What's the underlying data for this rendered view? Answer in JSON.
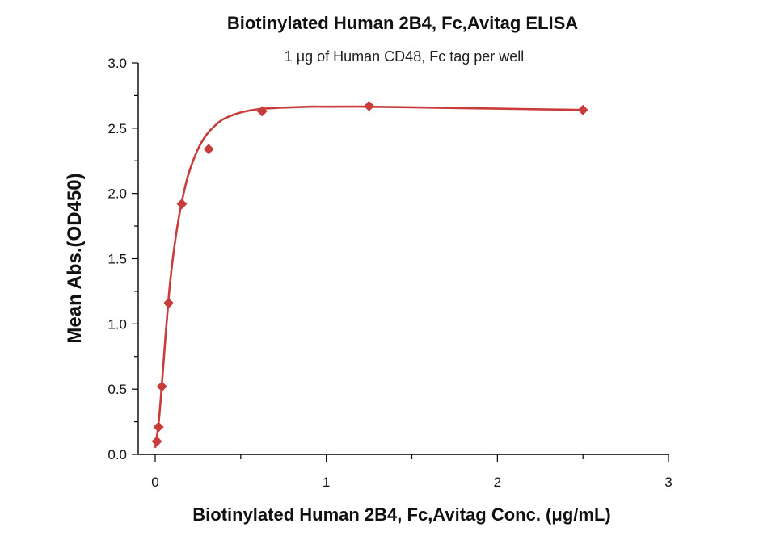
{
  "chart_data": {
    "type": "scatter",
    "title": "Biotinylated Human 2B4, Fc,Avitag ELISA",
    "subtitle": "1 μg of Human CD48, Fc tag per well",
    "xlabel": "Biotinylated Human 2B4, Fc,Avitag Conc. (μg/mL)",
    "ylabel": "Mean Abs.(OD450)",
    "xlim": [
      0,
      3
    ],
    "ylim": [
      0,
      3
    ],
    "x_ticks": [
      "0",
      "1",
      "2",
      "3"
    ],
    "y_ticks": [
      "0.0",
      "0.5",
      "1.0",
      "1.5",
      "2.0",
      "2.5",
      "3.0"
    ],
    "x_tick_values": [
      0,
      1,
      2,
      3
    ],
    "y_tick_values": [
      0,
      0.5,
      1,
      1.5,
      2,
      2.5,
      3
    ],
    "grid": false,
    "legend": "none",
    "series": [
      {
        "marker": "diamond",
        "color": "#c83c3c",
        "x": [
          0.0098,
          0.0195,
          0.039,
          0.078,
          0.156,
          0.3125,
          0.625,
          1.25,
          2.5
        ],
        "y": [
          0.1,
          0.21,
          0.52,
          1.16,
          1.92,
          2.34,
          2.63,
          2.67,
          2.64
        ]
      }
    ],
    "fit_curve": {
      "color": "#c83c3c",
      "x": [
        0,
        0.02,
        0.04,
        0.06,
        0.08,
        0.1,
        0.125,
        0.15,
        0.175,
        0.2,
        0.25,
        0.3,
        0.35,
        0.4,
        0.5,
        0.6,
        0.7,
        0.8,
        0.9,
        1.0,
        1.25,
        1.5,
        1.75,
        2.0,
        2.25,
        2.5
      ],
      "y": [
        0.05,
        0.24,
        0.55,
        0.9,
        1.22,
        1.47,
        1.71,
        1.9,
        2.05,
        2.17,
        2.34,
        2.45,
        2.52,
        2.57,
        2.62,
        2.645,
        2.655,
        2.66,
        2.665,
        2.665,
        2.665,
        2.66,
        2.655,
        2.65,
        2.645,
        2.64
      ]
    }
  }
}
